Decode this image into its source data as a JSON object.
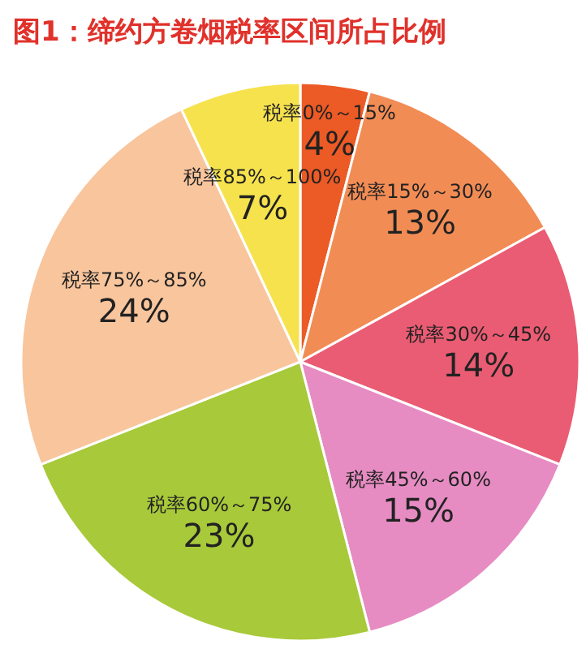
{
  "chart_data": {
    "type": "pie",
    "title": "图1：缔约方卷烟税率区间所占比例",
    "categories": [
      "税率0%～15%",
      "税率15%～30%",
      "税率30%～45%",
      "税率45%～60%",
      "税率60%～75%",
      "税率75%～85%",
      "税率85%～100%"
    ],
    "values": [
      4,
      13,
      14,
      15,
      23,
      24,
      7
    ],
    "value_labels": [
      "4%",
      "13%",
      "14%",
      "15%",
      "23%",
      "24%",
      "7%"
    ],
    "colors": [
      "#ec5a25",
      "#f28c55",
      "#ea5c73",
      "#e68cc2",
      "#a8c93a",
      "#f9c59c",
      "#f6e24d"
    ]
  }
}
